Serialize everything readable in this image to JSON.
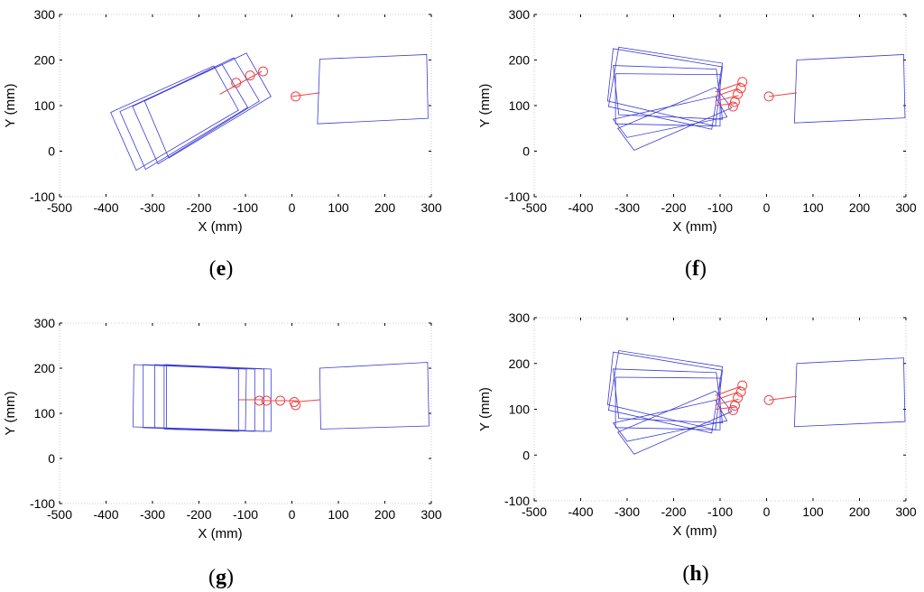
{
  "colors": {
    "rect": "#3b3bd6",
    "gripper": "#ee4444",
    "axis": "#000000"
  },
  "chart_data": [
    {
      "type": "scatter",
      "label": "e",
      "xlabel": "X (mm)",
      "ylabel": "Y (mm)",
      "xlim": [
        -500,
        300
      ],
      "ylim": [
        -100,
        300
      ],
      "xticks": [
        -500,
        -400,
        -300,
        -200,
        -100,
        0,
        100,
        200,
        300
      ],
      "yticks": [
        -100,
        0,
        100,
        200,
        300
      ],
      "rectangles": [
        [
          [
            -390,
            85
          ],
          [
            -335,
            -42
          ],
          [
            -115,
            90
          ],
          [
            -168,
            187
          ]
        ],
        [
          [
            -370,
            87
          ],
          [
            -315,
            -40
          ],
          [
            -95,
            96
          ],
          [
            -150,
            190
          ]
        ],
        [
          [
            -343,
            98
          ],
          [
            -288,
            -28
          ],
          [
            -70,
            110
          ],
          [
            -125,
            205
          ]
        ],
        [
          [
            -317,
            110
          ],
          [
            -265,
            -15
          ],
          [
            -45,
            120
          ],
          [
            -98,
            215
          ]
        ],
        [
          [
            60,
            202
          ],
          [
            55,
            60
          ],
          [
            293,
            72
          ],
          [
            290,
            212
          ]
        ]
      ],
      "gripper_lines": [
        [
          [
            -155,
            125
          ],
          [
            -65,
            175
          ]
        ],
        [
          [
            0,
            120
          ],
          [
            60,
            128
          ]
        ]
      ],
      "circles": [
        [
          -120,
          150
        ],
        [
          -90,
          166
        ],
        [
          -62,
          175
        ],
        [
          8,
          120
        ]
      ]
    },
    {
      "type": "scatter",
      "label": "f",
      "xlabel": "X (mm)",
      "ylabel": "Y (mm)",
      "xlim": [
        -500,
        300
      ],
      "ylim": [
        -100,
        300
      ],
      "xticks": [
        -500,
        -400,
        -300,
        -200,
        -100,
        0,
        100,
        200,
        300
      ],
      "yticks": [
        -100,
        0,
        100,
        200,
        300
      ],
      "rectangles": [
        [
          [
            -340,
            98
          ],
          [
            -318,
            228
          ],
          [
            -95,
            193
          ],
          [
            -118,
            48
          ]
        ],
        [
          [
            -342,
            110
          ],
          [
            -330,
            225
          ],
          [
            -95,
            185
          ],
          [
            -110,
            55
          ]
        ],
        [
          [
            -325,
            170
          ],
          [
            -325,
            60
          ],
          [
            -100,
            55
          ],
          [
            -100,
            168
          ]
        ],
        [
          [
            -330,
            188
          ],
          [
            -318,
            80
          ],
          [
            -95,
            70
          ],
          [
            -108,
            180
          ]
        ],
        [
          [
            -320,
            50
          ],
          [
            -285,
            2
          ],
          [
            -75,
            95
          ],
          [
            -110,
            140
          ]
        ],
        [
          [
            -330,
            70
          ],
          [
            -300,
            30
          ],
          [
            -85,
            75
          ],
          [
            -110,
            120
          ]
        ],
        [
          [
            65,
            200
          ],
          [
            60,
            62
          ],
          [
            298,
            73
          ],
          [
            295,
            212
          ]
        ]
      ],
      "gripper_lines": [
        [
          [
            -110,
            130
          ],
          [
            -55,
            150
          ]
        ],
        [
          [
            -110,
            120
          ],
          [
            -60,
            138
          ]
        ],
        [
          [
            -110,
            110
          ],
          [
            -60,
            122
          ]
        ],
        [
          [
            -110,
            100
          ],
          [
            -65,
            105
          ]
        ],
        [
          [
            5,
            120
          ],
          [
            65,
            128
          ]
        ]
      ],
      "circles": [
        [
          -52,
          152
        ],
        [
          -55,
          138
        ],
        [
          -62,
          125
        ],
        [
          -68,
          108
        ],
        [
          -72,
          98
        ],
        [
          5,
          120
        ]
      ]
    },
    {
      "type": "scatter",
      "label": "g",
      "xlabel": "X (mm)",
      "ylabel": "Y (mm)",
      "xlim": [
        -500,
        300
      ],
      "ylim": [
        -100,
        300
      ],
      "xticks": [
        -500,
        -400,
        -300,
        -200,
        -100,
        0,
        100,
        200,
        300
      ],
      "yticks": [
        -100,
        0,
        100,
        200,
        300
      ],
      "rectangles": [
        [
          [
            -340,
            208
          ],
          [
            -342,
            70
          ],
          [
            -100,
            62
          ],
          [
            -98,
            198
          ]
        ],
        [
          [
            -320,
            208
          ],
          [
            -320,
            68
          ],
          [
            -80,
            60
          ],
          [
            -80,
            198
          ]
        ],
        [
          [
            -295,
            208
          ],
          [
            -295,
            68
          ],
          [
            -60,
            60
          ],
          [
            -60,
            198
          ]
        ],
        [
          [
            -275,
            208
          ],
          [
            -275,
            65
          ],
          [
            -45,
            60
          ],
          [
            -45,
            198
          ]
        ],
        [
          [
            60,
            200
          ],
          [
            62,
            65
          ],
          [
            295,
            72
          ],
          [
            292,
            213
          ]
        ],
        [
          [
            -270,
            208
          ],
          [
            -270,
            65
          ],
          [
            -115,
            60
          ],
          [
            -115,
            198
          ]
        ]
      ],
      "gripper_lines": [
        [
          [
            -115,
            130
          ],
          [
            -65,
            130
          ]
        ],
        [
          [
            -65,
            128
          ],
          [
            5,
            128
          ]
        ],
        [
          [
            5,
            125
          ],
          [
            60,
            130
          ]
        ]
      ],
      "circles": [
        [
          -70,
          128
        ],
        [
          -55,
          128
        ],
        [
          -25,
          128
        ],
        [
          5,
          125
        ],
        [
          8,
          118
        ]
      ]
    },
    {
      "type": "scatter",
      "label": "h",
      "xlabel": "X (mm)",
      "ylabel": "Y (mm)",
      "xlim": [
        -500,
        300
      ],
      "ylim": [
        -100,
        300
      ],
      "xticks": [
        -500,
        -400,
        -300,
        -200,
        -100,
        0,
        100,
        200,
        300
      ],
      "yticks": [
        -100,
        0,
        100,
        200,
        300
      ],
      "rectangles": [
        [
          [
            -340,
            98
          ],
          [
            -318,
            228
          ],
          [
            -95,
            193
          ],
          [
            -118,
            48
          ]
        ],
        [
          [
            -342,
            110
          ],
          [
            -330,
            225
          ],
          [
            -95,
            185
          ],
          [
            -110,
            55
          ]
        ],
        [
          [
            -325,
            170
          ],
          [
            -325,
            60
          ],
          [
            -100,
            55
          ],
          [
            -100,
            168
          ]
        ],
        [
          [
            -330,
            188
          ],
          [
            -318,
            80
          ],
          [
            -95,
            70
          ],
          [
            -108,
            180
          ]
        ],
        [
          [
            -320,
            50
          ],
          [
            -285,
            2
          ],
          [
            -75,
            95
          ],
          [
            -110,
            140
          ]
        ],
        [
          [
            -330,
            70
          ],
          [
            -300,
            30
          ],
          [
            -85,
            75
          ],
          [
            -110,
            120
          ]
        ],
        [
          [
            65,
            200
          ],
          [
            60,
            62
          ],
          [
            298,
            73
          ],
          [
            295,
            212
          ]
        ]
      ],
      "gripper_lines": [
        [
          [
            -110,
            130
          ],
          [
            -55,
            150
          ]
        ],
        [
          [
            -110,
            120
          ],
          [
            -60,
            138
          ]
        ],
        [
          [
            -110,
            110
          ],
          [
            -60,
            122
          ]
        ],
        [
          [
            -110,
            100
          ],
          [
            -65,
            105
          ]
        ],
        [
          [
            5,
            120
          ],
          [
            65,
            128
          ]
        ]
      ],
      "circles": [
        [
          -52,
          152
        ],
        [
          -55,
          138
        ],
        [
          -62,
          125
        ],
        [
          -68,
          108
        ],
        [
          -72,
          98
        ],
        [
          5,
          120
        ]
      ]
    }
  ]
}
